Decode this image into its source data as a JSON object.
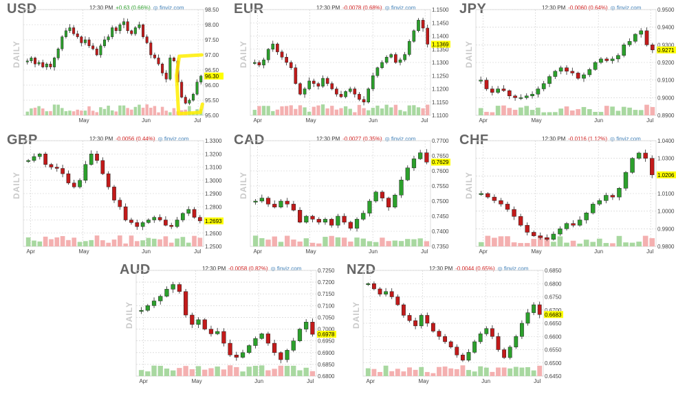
{
  "page": {
    "panels": [
      {
        "symbol": "USD",
        "time": "12:30 PM",
        "change": "+0.63 (0.66%)",
        "dir": "up",
        "brand": "finviz.com",
        "label": "DAILY",
        "last": "96.30",
        "lastValue": 96.3,
        "yTicks": [
          "98.50",
          "98.00",
          "97.50",
          "97.00",
          "96.50",
          "96.00",
          "95.50",
          "95.00"
        ],
        "ymin": 95.0,
        "ymax": 98.5,
        "xTicks": [
          "May",
          "Jun",
          "Jul"
        ],
        "xFrac": [
          0.33,
          0.68,
          0.97
        ],
        "highlight": true
      },
      {
        "symbol": "EUR",
        "time": "12:30 PM",
        "change": "-0.0078 (0.68%)",
        "dir": "dn",
        "brand": "finviz.com",
        "label": "DAILY",
        "last": "1.1369",
        "lastValue": 1.1369,
        "yTicks": [
          "1.1500",
          "1.1450",
          "1.1400",
          "1.1350",
          "1.1300",
          "1.1250",
          "1.1200",
          "1.1150",
          "1.1100"
        ],
        "ymin": 1.11,
        "ymax": 1.15,
        "xTicks": [
          "Apr",
          "May",
          "Jun",
          "Jul"
        ],
        "xFrac": [
          0.04,
          0.33,
          0.68,
          0.97
        ],
        "highlight": false
      },
      {
        "symbol": "JPY",
        "time": "12:30 PM",
        "change": "-0.0060 (0.64%)",
        "dir": "dn",
        "brand": "finviz.com",
        "label": "DAILY",
        "last": "0.9271",
        "lastValue": 0.9271,
        "yTicks": [
          "0.9500",
          "0.9400",
          "0.9300",
          "0.9200",
          "0.9100",
          "0.9000",
          "0.8900"
        ],
        "ymin": 0.89,
        "ymax": 0.95,
        "xTicks": [
          "Apr",
          "May",
          "Jun",
          "Jul"
        ],
        "xFrac": [
          0.04,
          0.33,
          0.68,
          0.97
        ],
        "highlight": false
      },
      {
        "symbol": "GBP",
        "time": "12:30 PM",
        "change": "-0.0056 (0.44%)",
        "dir": "dn",
        "brand": "finviz.com",
        "label": "DAILY",
        "last": "1.2693",
        "lastValue": 1.2693,
        "yTicks": [
          "1.3300",
          "1.3200",
          "1.3100",
          "1.3000",
          "1.2900",
          "1.2800",
          "1.2700",
          "1.2600",
          "1.2500"
        ],
        "ymin": 1.25,
        "ymax": 1.33,
        "xTicks": [
          "Apr",
          "May",
          "Jun",
          "Jul"
        ],
        "xFrac": [
          0.04,
          0.33,
          0.68,
          0.97
        ],
        "highlight": false
      },
      {
        "symbol": "CAD",
        "time": "12:30 PM",
        "change": "-0.0027 (0.35%)",
        "dir": "dn",
        "brand": "finviz.com",
        "label": "DAILY",
        "last": "0.7629",
        "lastValue": 0.7629,
        "yTicks": [
          "0.7700",
          "0.7650",
          "0.7600",
          "0.7550",
          "0.7500",
          "0.7450",
          "0.7400",
          "0.7350"
        ],
        "ymin": 0.735,
        "ymax": 0.77,
        "xTicks": [
          "Apr",
          "May",
          "Jun",
          "Jul"
        ],
        "xFrac": [
          0.04,
          0.33,
          0.68,
          0.97
        ],
        "highlight": false
      },
      {
        "symbol": "CHF",
        "time": "12:30 PM",
        "change": "-0.0116 (1.12%)",
        "dir": "dn",
        "brand": "finviz.com",
        "label": "DAILY",
        "last": "1.0206",
        "lastValue": 1.0206,
        "yTicks": [
          "1.0400",
          "1.0300",
          "1.0200",
          "1.0100",
          "1.0000",
          "0.9900",
          "0.9800"
        ],
        "ymin": 0.98,
        "ymax": 1.04,
        "xTicks": [
          "Apr",
          "May",
          "Jun",
          "Jul"
        ],
        "xFrac": [
          0.04,
          0.33,
          0.68,
          0.97
        ],
        "highlight": false
      },
      {
        "symbol": "AUD",
        "time": "12:30 PM",
        "change": "-0.0058 (0.82%)",
        "dir": "dn",
        "brand": "finviz.com",
        "label": "DAILY",
        "last": "0.6978",
        "lastValue": 0.6978,
        "yTicks": [
          "0.7250",
          "0.7200",
          "0.7150",
          "0.7100",
          "0.7050",
          "0.7000",
          "0.6950",
          "0.6900",
          "0.6850",
          "0.6800"
        ],
        "ymin": 0.68,
        "ymax": 0.725,
        "xTicks": [
          "Apr",
          "May",
          "Jun",
          "Jul"
        ],
        "xFrac": [
          0.04,
          0.33,
          0.68,
          0.97
        ],
        "highlight": false
      },
      {
        "symbol": "NZD",
        "time": "12:30 PM",
        "change": "-0.0044 (0.65%)",
        "dir": "dn",
        "brand": "finviz.com",
        "label": "DAILY",
        "last": "0.6683",
        "lastValue": 0.6683,
        "yTicks": [
          "0.6850",
          "0.6800",
          "0.6750",
          "0.6700",
          "0.6650",
          "0.6600",
          "0.6550",
          "0.6500",
          "0.6450"
        ],
        "ymin": 0.645,
        "ymax": 0.685,
        "xTicks": [
          "Apr",
          "May",
          "Jun",
          "Jul"
        ],
        "xFrac": [
          0.04,
          0.33,
          0.68,
          0.97
        ],
        "highlight": false
      }
    ]
  },
  "colors": {
    "up": "#2ca02c",
    "down": "#c21a1a",
    "volUp": "#a8d8a0",
    "volDown": "#f4b0b0",
    "grid": "#cccccc",
    "highlight": "#ffee00"
  },
  "chart_data": [
    {
      "type": "candlestick",
      "title": "USD",
      "series": [
        {
          "name": "USD",
          "values": [
            96.8,
            96.9,
            96.7,
            96.75,
            96.6,
            96.7,
            96.6,
            96.9,
            97.2,
            97.6,
            97.8,
            97.9,
            97.7,
            97.6,
            97.4,
            97.5,
            97.3,
            97.2,
            97.0,
            97.3,
            97.5,
            97.6,
            97.9,
            97.8,
            98.0,
            98.1,
            97.8,
            97.7,
            97.9,
            98.0,
            97.6,
            97.4,
            97.0,
            96.9,
            96.7,
            96.4,
            96.2,
            96.9,
            96.8,
            96.1,
            95.6,
            95.4,
            95.5,
            95.7,
            96.1,
            96.3
          ]
        }
      ],
      "ylim": [
        95.0,
        98.5
      ]
    },
    {
      "type": "candlestick",
      "title": "EUR",
      "series": [
        {
          "name": "EUR",
          "values": [
            1.13,
            1.129,
            1.131,
            1.135,
            1.137,
            1.134,
            1.132,
            1.13,
            1.128,
            1.122,
            1.118,
            1.12,
            1.123,
            1.122,
            1.121,
            1.124,
            1.122,
            1.12,
            1.118,
            1.117,
            1.119,
            1.12,
            1.118,
            1.116,
            1.115,
            1.12,
            1.125,
            1.128,
            1.13,
            1.132,
            1.133,
            1.13,
            1.131,
            1.133,
            1.138,
            1.142,
            1.146,
            1.143,
            1.1369
          ]
        }
      ],
      "ylim": [
        1.11,
        1.15
      ]
    },
    {
      "type": "candlestick",
      "title": "JPY",
      "series": [
        {
          "name": "JPY",
          "values": [
            0.91,
            0.905,
            0.903,
            0.905,
            0.904,
            0.901,
            0.9,
            0.9,
            0.901,
            0.902,
            0.905,
            0.908,
            0.912,
            0.915,
            0.917,
            0.915,
            0.914,
            0.911,
            0.913,
            0.916,
            0.92,
            0.922,
            0.921,
            0.922,
            0.924,
            0.93,
            0.932,
            0.936,
            0.938,
            0.93,
            0.9271
          ]
        }
      ],
      "ylim": [
        0.89,
        0.95
      ]
    },
    {
      "type": "candlestick",
      "title": "GBP",
      "series": [
        {
          "name": "GBP",
          "values": [
            1.315,
            1.318,
            1.32,
            1.312,
            1.31,
            1.309,
            1.305,
            1.298,
            1.295,
            1.3,
            1.312,
            1.32,
            1.315,
            1.305,
            1.295,
            1.285,
            1.28,
            1.27,
            1.268,
            1.265,
            1.268,
            1.27,
            1.272,
            1.27,
            1.266,
            1.265,
            1.27,
            1.275,
            1.278,
            1.272,
            1.2693
          ]
        }
      ],
      "ylim": [
        1.25,
        1.33
      ]
    },
    {
      "type": "candlestick",
      "title": "CAD",
      "series": [
        {
          "name": "CAD",
          "values": [
            0.75,
            0.751,
            0.749,
            0.748,
            0.75,
            0.749,
            0.747,
            0.743,
            0.745,
            0.744,
            0.743,
            0.744,
            0.742,
            0.745,
            0.743,
            0.741,
            0.744,
            0.746,
            0.75,
            0.753,
            0.751,
            0.748,
            0.752,
            0.757,
            0.761,
            0.764,
            0.766,
            0.7629
          ]
        }
      ],
      "ylim": [
        0.735,
        0.77
      ]
    },
    {
      "type": "candlestick",
      "title": "CHF",
      "series": [
        {
          "name": "CHF",
          "values": [
            1.01,
            1.008,
            1.006,
            1.004,
            1.001,
            0.997,
            0.992,
            0.988,
            0.986,
            0.985,
            0.984,
            0.987,
            0.99,
            0.993,
            0.992,
            0.995,
            0.999,
            1.004,
            1.006,
            1.009,
            1.008,
            1.013,
            1.022,
            1.03,
            1.033,
            1.03,
            1.0206
          ]
        }
      ],
      "ylim": [
        0.98,
        1.04
      ]
    },
    {
      "type": "candlestick",
      "title": "AUD",
      "series": [
        {
          "name": "AUD",
          "values": [
            0.708,
            0.71,
            0.712,
            0.714,
            0.717,
            0.719,
            0.716,
            0.706,
            0.702,
            0.704,
            0.7,
            0.698,
            0.699,
            0.694,
            0.689,
            0.688,
            0.69,
            0.693,
            0.696,
            0.698,
            0.694,
            0.69,
            0.687,
            0.691,
            0.695,
            0.7,
            0.703,
            0.6978
          ]
        }
      ],
      "ylim": [
        0.68,
        0.725
      ]
    },
    {
      "type": "candlestick",
      "title": "NZD",
      "series": [
        {
          "name": "NZD",
          "values": [
            0.68,
            0.678,
            0.676,
            0.677,
            0.675,
            0.672,
            0.668,
            0.666,
            0.664,
            0.668,
            0.665,
            0.662,
            0.66,
            0.658,
            0.656,
            0.653,
            0.651,
            0.654,
            0.658,
            0.661,
            0.663,
            0.66,
            0.655,
            0.652,
            0.656,
            0.66,
            0.665,
            0.669,
            0.672,
            0.6683
          ]
        }
      ],
      "ylim": [
        0.645,
        0.685
      ]
    }
  ]
}
